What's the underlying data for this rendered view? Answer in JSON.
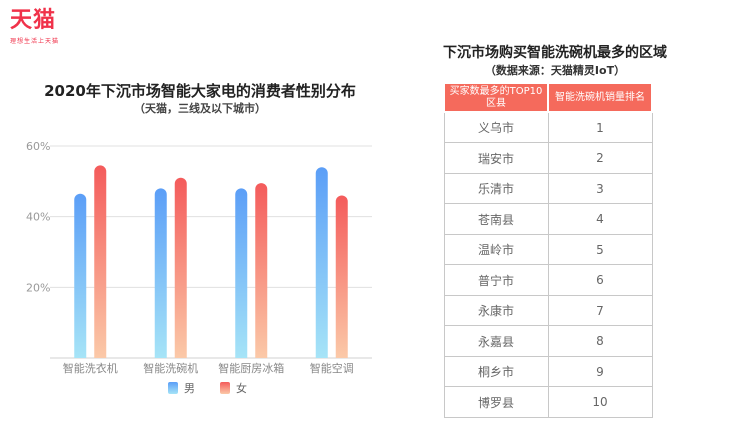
{
  "brand": {
    "name": "天猫",
    "slogan": "理想生活上天猫"
  },
  "chart_data": {
    "type": "bar",
    "title": "2020年下沉市场智能大家电的消费者性别分布",
    "subtitle": "（天猫，三线及以下城市）",
    "categories": [
      "智能洗衣机",
      "智能洗碗机",
      "智能厨房冰箱",
      "智能空调"
    ],
    "series": [
      {
        "name": "男",
        "values": [
          46.5,
          48,
          48,
          54
        ],
        "color_top": "#5b9ef7",
        "color_bottom": "#a6e4f7"
      },
      {
        "name": "女",
        "values": [
          54.5,
          51,
          49.5,
          46
        ],
        "color_top": "#f45b5b",
        "color_bottom": "#fbc9a8"
      }
    ],
    "ylim": [
      0,
      60
    ],
    "yticks": [
      20,
      40,
      60
    ],
    "ytick_labels": [
      "20%",
      "40%",
      "60%"
    ],
    "grid": true,
    "legend": "bottom-center"
  },
  "table": {
    "title": "下沉市场购买智能洗碗机最多的区域",
    "subtitle": "（数据来源：天猫精灵IoT）",
    "headers": [
      "买家数最多的TOP10区县",
      "智能洗碗机销量排名"
    ],
    "rows": [
      [
        "义乌市",
        "1"
      ],
      [
        "瑞安市",
        "2"
      ],
      [
        "乐清市",
        "3"
      ],
      [
        "苍南县",
        "4"
      ],
      [
        "温岭市",
        "5"
      ],
      [
        "普宁市",
        "6"
      ],
      [
        "永康市",
        "7"
      ],
      [
        "永嘉县",
        "8"
      ],
      [
        "桐乡市",
        "9"
      ],
      [
        "博罗县",
        "10"
      ]
    ]
  }
}
